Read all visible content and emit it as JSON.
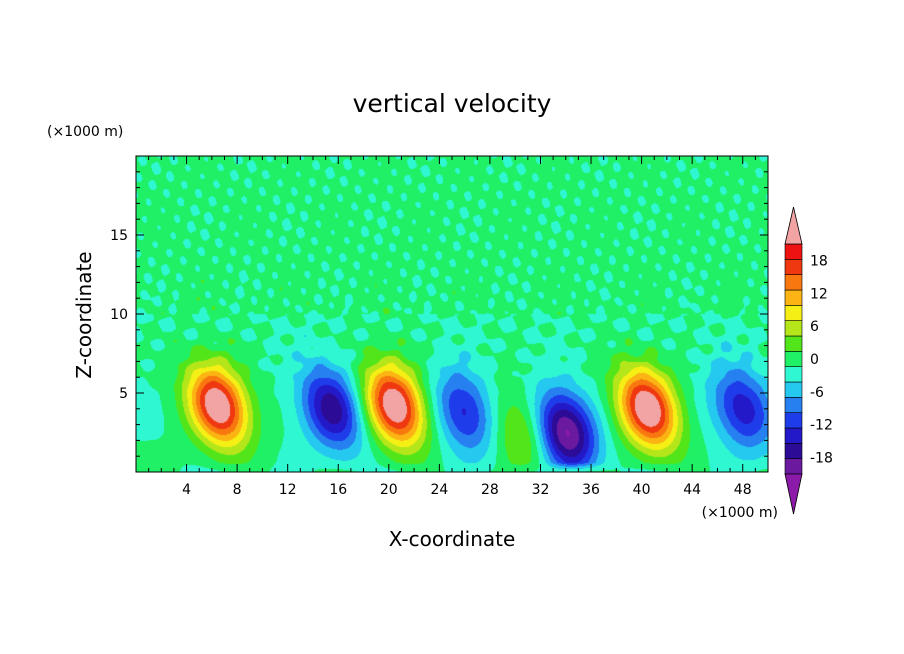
{
  "chart_data": {
    "type": "heatmap",
    "title": "vertical velocity",
    "xlabel": "X-coordinate",
    "ylabel": "Z-coordinate",
    "x_unit": "(×1000 m)",
    "y_unit": "(×1000 m)",
    "xlim": [
      0,
      50
    ],
    "ylim": [
      0,
      20
    ],
    "x_ticks": [
      4,
      8,
      12,
      16,
      20,
      24,
      28,
      32,
      36,
      40,
      44,
      48
    ],
    "y_ticks": [
      5,
      10,
      15
    ],
    "colorbar": {
      "min": -21,
      "max": 21,
      "levels": [
        -21,
        -18,
        -15,
        -12,
        -9,
        -6,
        -3,
        0,
        3,
        6,
        9,
        12,
        15,
        18,
        21
      ],
      "tick_labels": [
        "18",
        "12",
        "6",
        "0",
        "-6",
        "-12",
        "-18"
      ],
      "tick_values": [
        18,
        12,
        6,
        0,
        -6,
        -12,
        -18
      ],
      "colors": [
        "#6b1aa0",
        "#2c0c96",
        "#2419c8",
        "#1f3ceb",
        "#2680f0",
        "#25c8ef",
        "#2ff7d2",
        "#20f065",
        "#52e61a",
        "#b4e61a",
        "#f5ef15",
        "#fbb413",
        "#f8780f",
        "#ef3810",
        "#ee1212"
      ],
      "under_color": "#8c1aa8",
      "over_color": "#f2a3a3"
    },
    "features": [
      {
        "x": 6.5,
        "z": 4.2,
        "w": 25
      },
      {
        "x": 15.5,
        "z": 4.0,
        "w": -17
      },
      {
        "x": 20.5,
        "z": 4.2,
        "w": 25
      },
      {
        "x": 26.0,
        "z": 3.8,
        "w": -13
      },
      {
        "x": 30.5,
        "z": 2.5,
        "w": 8
      },
      {
        "x": 34.0,
        "z": 2.5,
        "w": -22
      },
      {
        "x": 40.5,
        "z": 4.0,
        "w": 25
      },
      {
        "x": 48.0,
        "z": 4.0,
        "w": -14
      }
    ],
    "grid": false,
    "legend": "colorbar-right"
  }
}
